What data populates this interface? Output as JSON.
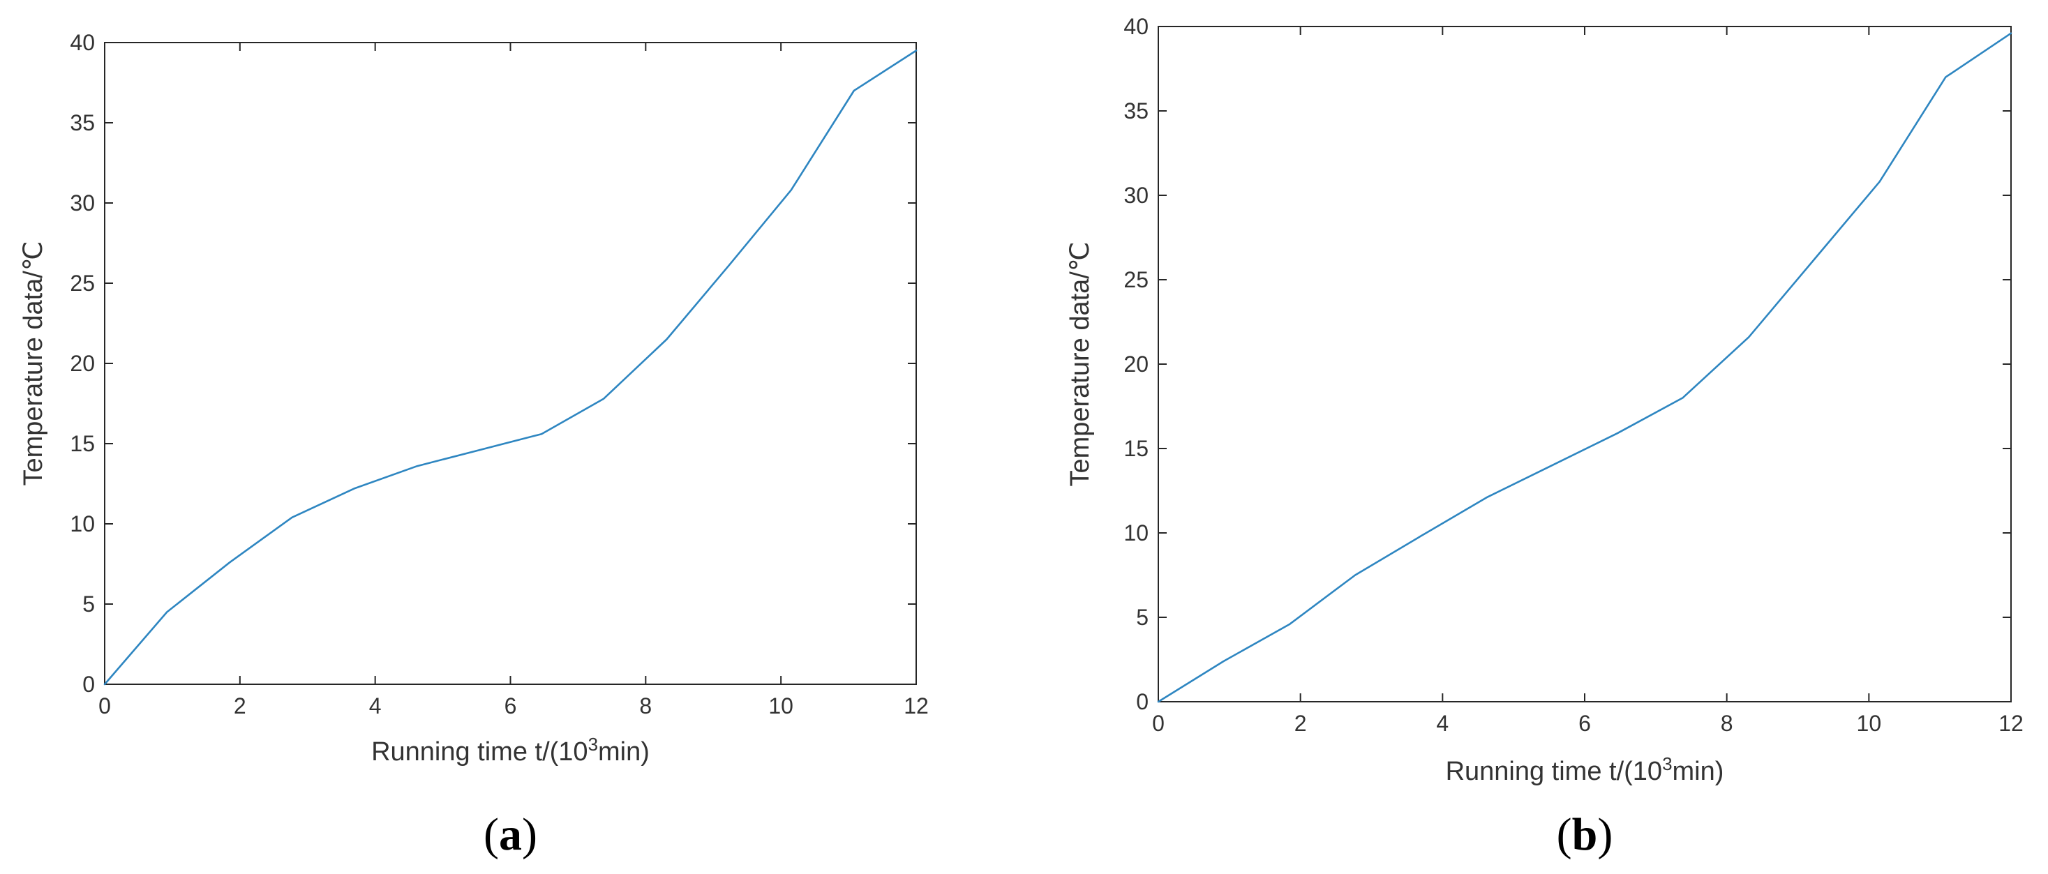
{
  "colors": {
    "line": "#2E86C1",
    "axis": "#262626",
    "text": "#333333"
  },
  "chart_data": [
    {
      "panel": "(a)",
      "type": "line",
      "xlabel": "Running time t/(10",
      "xlabel_sup": "3",
      "xlabel_end": "min)",
      "ylabel": "Temperature data/℃",
      "xlim": [
        0,
        12
      ],
      "ylim": [
        0,
        40
      ],
      "xticks": [
        0,
        2,
        4,
        6,
        8,
        10,
        12
      ],
      "yticks": [
        0,
        5,
        10,
        15,
        20,
        25,
        30,
        35,
        40
      ],
      "grid": false,
      "series": [
        {
          "x": [
            0,
            0.92,
            1.85,
            2.77,
            3.69,
            4.62,
            5.54,
            6.46,
            7.38,
            8.31,
            9.23,
            10.15,
            11.08,
            12.0
          ],
          "y": [
            0,
            4.5,
            7.6,
            10.4,
            12.2,
            13.6,
            14.6,
            15.6,
            17.8,
            21.5,
            26.1,
            30.8,
            37.0,
            39.5
          ]
        }
      ]
    },
    {
      "panel": "(b)",
      "type": "line",
      "xlabel": "Running time t/(10",
      "xlabel_sup": "3",
      "xlabel_end": "min)",
      "ylabel": "Temperature data/℃",
      "xlim": [
        0,
        12
      ],
      "ylim": [
        0,
        40
      ],
      "xticks": [
        0,
        2,
        4,
        6,
        8,
        10,
        12
      ],
      "yticks": [
        0,
        5,
        10,
        15,
        20,
        25,
        30,
        35,
        40
      ],
      "grid": false,
      "series": [
        {
          "x": [
            0,
            0.92,
            1.85,
            2.77,
            3.69,
            4.62,
            5.54,
            6.46,
            7.38,
            8.31,
            9.23,
            10.15,
            11.08,
            12.0
          ],
          "y": [
            0,
            2.4,
            4.6,
            7.5,
            9.8,
            12.1,
            14.0,
            15.9,
            18.0,
            21.6,
            26.2,
            30.8,
            37.0,
            39.6
          ]
        }
      ]
    }
  ]
}
